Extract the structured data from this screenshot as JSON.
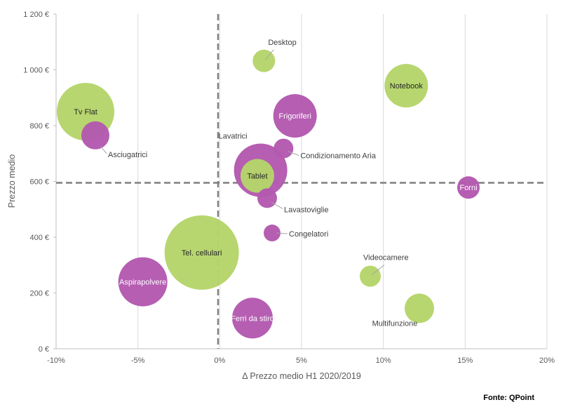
{
  "chart_data": {
    "type": "bubble",
    "xlabel": "Δ Prezzo medio H1 2020/2019",
    "ylabel": "Prezzo medio",
    "xlim": [
      -10,
      20
    ],
    "ylim": [
      0,
      1200
    ],
    "x_ticks": [
      {
        "v": -10,
        "label": "-10%"
      },
      {
        "v": -5,
        "label": "-5%"
      },
      {
        "v": 0,
        "label": "0%"
      },
      {
        "v": 5,
        "label": "5%"
      },
      {
        "v": 10,
        "label": "10%"
      },
      {
        "v": 15,
        "label": "15%"
      },
      {
        "v": 20,
        "label": "20%"
      }
    ],
    "y_ticks": [
      {
        "v": 0,
        "label": "0 €"
      },
      {
        "v": 200,
        "label": "200 €"
      },
      {
        "v": 400,
        "label": "400 €"
      },
      {
        "v": 600,
        "label": "600 €"
      },
      {
        "v": 800,
        "label": "800 €"
      },
      {
        "v": 1000,
        "label": "1 000 €"
      },
      {
        "v": 1200,
        "label": "1 200 €"
      }
    ],
    "grid": "vertical",
    "reference_lines": {
      "x": -0.1,
      "y": 595
    },
    "colors": {
      "green": "#b5d56a",
      "purple": "#b359b0",
      "grid": "#d9d9d9",
      "axis": "#bfbfbf",
      "ref": "#7f7f7f"
    },
    "points": [
      {
        "name": "Tv Flat",
        "x": -8.2,
        "y": 850,
        "size": 41,
        "color": "green"
      },
      {
        "name": "Asciugatrici",
        "x": -7.6,
        "y": 765,
        "size": 20,
        "color": "purple"
      },
      {
        "name": "Lavatrici",
        "x": 2.5,
        "y": 640,
        "size": 38,
        "color": "purple"
      },
      {
        "name": "Desktop",
        "x": 2.7,
        "y": 1032,
        "size": 16,
        "color": "green"
      },
      {
        "name": "Frigoriferi",
        "x": 4.6,
        "y": 835,
        "size": 31,
        "color": "purple"
      },
      {
        "name": "Condizionamento Aria",
        "x": 3.9,
        "y": 718,
        "size": 14,
        "color": "purple"
      },
      {
        "name": "Tablet",
        "x": 2.3,
        "y": 620,
        "size": 24,
        "color": "green"
      },
      {
        "name": "Lavastoviglie",
        "x": 2.9,
        "y": 540,
        "size": 14,
        "color": "purple"
      },
      {
        "name": "Congelatori",
        "x": 3.2,
        "y": 415,
        "size": 12,
        "color": "purple"
      },
      {
        "name": "Notebook",
        "x": 11.4,
        "y": 943,
        "size": 31,
        "color": "green"
      },
      {
        "name": "Forni",
        "x": 15.2,
        "y": 578,
        "size": 16,
        "color": "purple"
      },
      {
        "name": "Tel. cellulari",
        "x": -1.1,
        "y": 345,
        "size": 53,
        "color": "green"
      },
      {
        "name": "Aspirapolvere",
        "x": -4.7,
        "y": 240,
        "size": 35,
        "color": "purple"
      },
      {
        "name": "Videocamere",
        "x": 9.2,
        "y": 260,
        "size": 15,
        "color": "green"
      },
      {
        "name": "Multifunzione",
        "x": 12.2,
        "y": 145,
        "size": 21,
        "color": "green"
      },
      {
        "name": "Ferri da stiro",
        "x": 2.0,
        "y": 110,
        "size": 29,
        "color": "purple"
      }
    ]
  },
  "source": "Fonte: QPoint"
}
